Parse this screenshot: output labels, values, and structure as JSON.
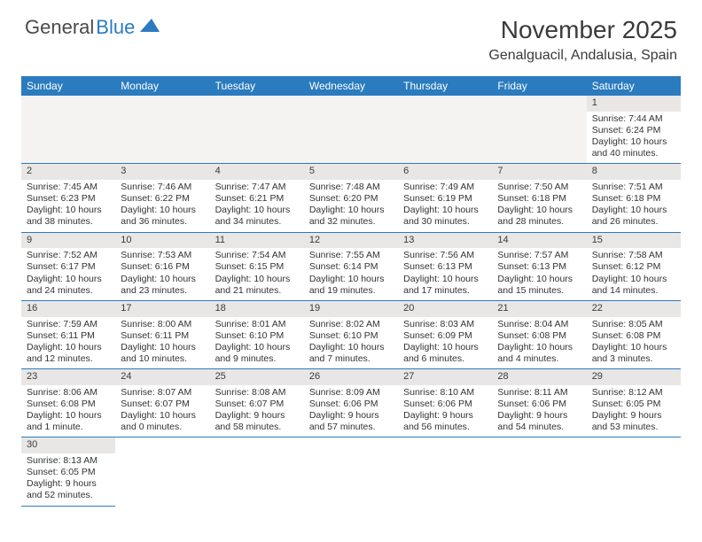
{
  "brand": {
    "part1": "General",
    "part2": "Blue"
  },
  "title": "November 2025",
  "location": "Genalguacil, Andalusia, Spain",
  "colors": {
    "header_bg": "#2b7bbf",
    "rule": "#2b7bbf",
    "daynum_bg": "#e8e7e5",
    "nonday_bg": "#f4f3f2"
  },
  "dow": [
    "Sunday",
    "Monday",
    "Tuesday",
    "Wednesday",
    "Thursday",
    "Friday",
    "Saturday"
  ],
  "weeks": [
    [
      null,
      null,
      null,
      null,
      null,
      null,
      {
        "n": "1",
        "sr": "Sunrise: 7:44 AM",
        "ss": "Sunset: 6:24 PM",
        "dl": "Daylight: 10 hours and 40 minutes."
      }
    ],
    [
      {
        "n": "2",
        "sr": "Sunrise: 7:45 AM",
        "ss": "Sunset: 6:23 PM",
        "dl": "Daylight: 10 hours and 38 minutes."
      },
      {
        "n": "3",
        "sr": "Sunrise: 7:46 AM",
        "ss": "Sunset: 6:22 PM",
        "dl": "Daylight: 10 hours and 36 minutes."
      },
      {
        "n": "4",
        "sr": "Sunrise: 7:47 AM",
        "ss": "Sunset: 6:21 PM",
        "dl": "Daylight: 10 hours and 34 minutes."
      },
      {
        "n": "5",
        "sr": "Sunrise: 7:48 AM",
        "ss": "Sunset: 6:20 PM",
        "dl": "Daylight: 10 hours and 32 minutes."
      },
      {
        "n": "6",
        "sr": "Sunrise: 7:49 AM",
        "ss": "Sunset: 6:19 PM",
        "dl": "Daylight: 10 hours and 30 minutes."
      },
      {
        "n": "7",
        "sr": "Sunrise: 7:50 AM",
        "ss": "Sunset: 6:18 PM",
        "dl": "Daylight: 10 hours and 28 minutes."
      },
      {
        "n": "8",
        "sr": "Sunrise: 7:51 AM",
        "ss": "Sunset: 6:18 PM",
        "dl": "Daylight: 10 hours and 26 minutes."
      }
    ],
    [
      {
        "n": "9",
        "sr": "Sunrise: 7:52 AM",
        "ss": "Sunset: 6:17 PM",
        "dl": "Daylight: 10 hours and 24 minutes."
      },
      {
        "n": "10",
        "sr": "Sunrise: 7:53 AM",
        "ss": "Sunset: 6:16 PM",
        "dl": "Daylight: 10 hours and 23 minutes."
      },
      {
        "n": "11",
        "sr": "Sunrise: 7:54 AM",
        "ss": "Sunset: 6:15 PM",
        "dl": "Daylight: 10 hours and 21 minutes."
      },
      {
        "n": "12",
        "sr": "Sunrise: 7:55 AM",
        "ss": "Sunset: 6:14 PM",
        "dl": "Daylight: 10 hours and 19 minutes."
      },
      {
        "n": "13",
        "sr": "Sunrise: 7:56 AM",
        "ss": "Sunset: 6:13 PM",
        "dl": "Daylight: 10 hours and 17 minutes."
      },
      {
        "n": "14",
        "sr": "Sunrise: 7:57 AM",
        "ss": "Sunset: 6:13 PM",
        "dl": "Daylight: 10 hours and 15 minutes."
      },
      {
        "n": "15",
        "sr": "Sunrise: 7:58 AM",
        "ss": "Sunset: 6:12 PM",
        "dl": "Daylight: 10 hours and 14 minutes."
      }
    ],
    [
      {
        "n": "16",
        "sr": "Sunrise: 7:59 AM",
        "ss": "Sunset: 6:11 PM",
        "dl": "Daylight: 10 hours and 12 minutes."
      },
      {
        "n": "17",
        "sr": "Sunrise: 8:00 AM",
        "ss": "Sunset: 6:11 PM",
        "dl": "Daylight: 10 hours and 10 minutes."
      },
      {
        "n": "18",
        "sr": "Sunrise: 8:01 AM",
        "ss": "Sunset: 6:10 PM",
        "dl": "Daylight: 10 hours and 9 minutes."
      },
      {
        "n": "19",
        "sr": "Sunrise: 8:02 AM",
        "ss": "Sunset: 6:10 PM",
        "dl": "Daylight: 10 hours and 7 minutes."
      },
      {
        "n": "20",
        "sr": "Sunrise: 8:03 AM",
        "ss": "Sunset: 6:09 PM",
        "dl": "Daylight: 10 hours and 6 minutes."
      },
      {
        "n": "21",
        "sr": "Sunrise: 8:04 AM",
        "ss": "Sunset: 6:08 PM",
        "dl": "Daylight: 10 hours and 4 minutes."
      },
      {
        "n": "22",
        "sr": "Sunrise: 8:05 AM",
        "ss": "Sunset: 6:08 PM",
        "dl": "Daylight: 10 hours and 3 minutes."
      }
    ],
    [
      {
        "n": "23",
        "sr": "Sunrise: 8:06 AM",
        "ss": "Sunset: 6:08 PM",
        "dl": "Daylight: 10 hours and 1 minute."
      },
      {
        "n": "24",
        "sr": "Sunrise: 8:07 AM",
        "ss": "Sunset: 6:07 PM",
        "dl": "Daylight: 10 hours and 0 minutes."
      },
      {
        "n": "25",
        "sr": "Sunrise: 8:08 AM",
        "ss": "Sunset: 6:07 PM",
        "dl": "Daylight: 9 hours and 58 minutes."
      },
      {
        "n": "26",
        "sr": "Sunrise: 8:09 AM",
        "ss": "Sunset: 6:06 PM",
        "dl": "Daylight: 9 hours and 57 minutes."
      },
      {
        "n": "27",
        "sr": "Sunrise: 8:10 AM",
        "ss": "Sunset: 6:06 PM",
        "dl": "Daylight: 9 hours and 56 minutes."
      },
      {
        "n": "28",
        "sr": "Sunrise: 8:11 AM",
        "ss": "Sunset: 6:06 PM",
        "dl": "Daylight: 9 hours and 54 minutes."
      },
      {
        "n": "29",
        "sr": "Sunrise: 8:12 AM",
        "ss": "Sunset: 6:05 PM",
        "dl": "Daylight: 9 hours and 53 minutes."
      }
    ],
    [
      {
        "n": "30",
        "sr": "Sunrise: 8:13 AM",
        "ss": "Sunset: 6:05 PM",
        "dl": "Daylight: 9 hours and 52 minutes."
      },
      null,
      null,
      null,
      null,
      null,
      null
    ]
  ]
}
